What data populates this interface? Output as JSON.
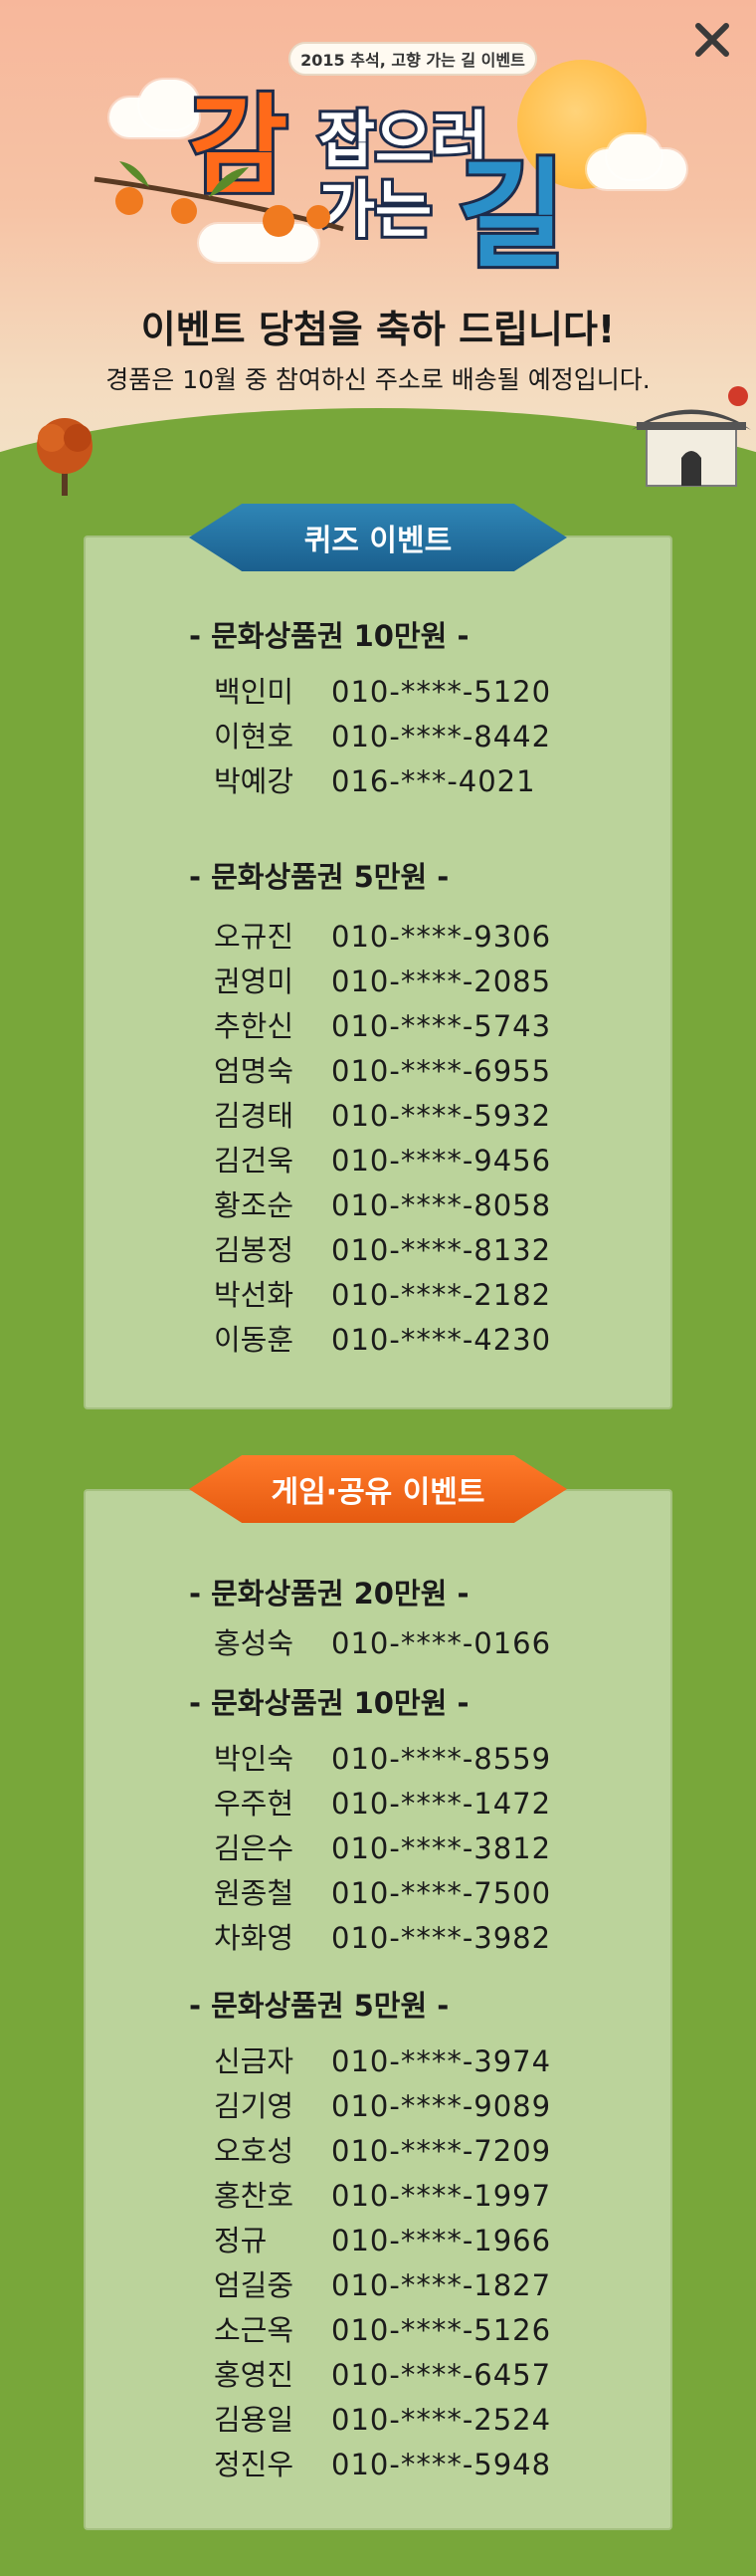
{
  "header": {
    "ribbon_text": "2015 추석, 고향 가는 길 이벤트",
    "title_char_1": "감",
    "title_top_line": "잡으러",
    "title_bottom_line": "가는",
    "title_char_last": "길",
    "headline": "이벤트 당첨을 축하 드립니다!",
    "subline": "경품은 10월 중 참여하신 주소로 배송될 예정입니다.",
    "close_label": "✕"
  },
  "quiz": {
    "banner": "퀴즈 이벤트",
    "groups": [
      {
        "title": "- 문화상품권 10만원 -",
        "winners": [
          {
            "name": "백인미",
            "phone": "010-****-5120"
          },
          {
            "name": "이현호",
            "phone": "010-****-8442"
          },
          {
            "name": "박예강",
            "phone": "016-***-4021"
          }
        ]
      },
      {
        "title": "- 문화상품권 5만원 -",
        "winners": [
          {
            "name": "오규진",
            "phone": "010-****-9306"
          },
          {
            "name": "권영미",
            "phone": "010-****-2085"
          },
          {
            "name": "추한신",
            "phone": "010-****-5743"
          },
          {
            "name": "엄명숙",
            "phone": "010-****-6955"
          },
          {
            "name": "김경태",
            "phone": "010-****-5932"
          },
          {
            "name": "김건욱",
            "phone": "010-****-9456"
          },
          {
            "name": "황조순",
            "phone": "010-****-8058"
          },
          {
            "name": "김봉정",
            "phone": "010-****-8132"
          },
          {
            "name": "박선화",
            "phone": "010-****-2182"
          },
          {
            "name": "이동훈",
            "phone": "010-****-4230"
          }
        ]
      }
    ]
  },
  "game": {
    "banner": "게임·공유 이벤트",
    "groups": [
      {
        "title": "- 문화상품권 20만원 -",
        "winners": [
          {
            "name": "홍성숙",
            "phone": "010-****-0166"
          }
        ]
      },
      {
        "title": "- 문화상품권 10만원 -",
        "winners": [
          {
            "name": "박인숙",
            "phone": "010-****-8559"
          },
          {
            "name": "우주현",
            "phone": "010-****-1472"
          },
          {
            "name": "김은수",
            "phone": "010-****-3812"
          },
          {
            "name": "원종철",
            "phone": "010-****-7500"
          },
          {
            "name": "차화영",
            "phone": "010-****-3982"
          }
        ]
      },
      {
        "title": "- 문화상품권 5만원 -",
        "winners": [
          {
            "name": "신금자",
            "phone": "010-****-3974"
          },
          {
            "name": "김기영",
            "phone": "010-****-9089"
          },
          {
            "name": "오호성",
            "phone": "010-****-7209"
          },
          {
            "name": "홍찬호",
            "phone": "010-****-1997"
          },
          {
            "name": "정규",
            "phone": "010-****-1966"
          },
          {
            "name": "엄길중",
            "phone": "010-****-1827"
          },
          {
            "name": "소근옥",
            "phone": "010-****-5126"
          },
          {
            "name": "홍영진",
            "phone": "010-****-6457"
          },
          {
            "name": "김용일",
            "phone": "010-****-2524"
          },
          {
            "name": "정진우",
            "phone": "010-****-5948"
          }
        ]
      }
    ]
  },
  "colors": {
    "sky_top": "#f7b79b",
    "grass": "#78a73a",
    "panel_bg": "#bbd39b",
    "quiz_banner": "#2f86b6",
    "game_banner": "#ff7a2a",
    "title_orange": "#ff6a1a",
    "title_blue": "#2a8fc8"
  },
  "icons": {
    "close": "close-icon",
    "persimmon": "persimmon-icon",
    "tree": "autumn-tree-icon",
    "gate": "traditional-gate-icon",
    "sun": "sun-icon",
    "cloud": "cloud-icon"
  }
}
